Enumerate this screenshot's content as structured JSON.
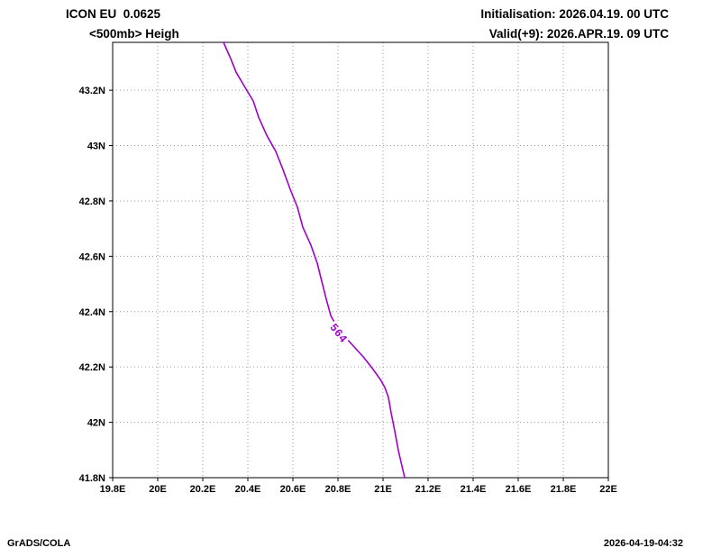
{
  "header": {
    "model_line": "ICON EU  0.0625",
    "field_line": "<500mb> Heigh",
    "init_line": "Initialisation: 2026.04.19. 00 UTC",
    "valid_line": "Valid(+9): 2026.APR.19. 09 UTC"
  },
  "footer": {
    "left": "GrADS/COLA",
    "right": "2026-04-19-04:32"
  },
  "chart_data": {
    "type": "line",
    "title": "ICON EU 0.0625 <500mb> Heigh",
    "grid": "dotted",
    "grid_color": "#9a9a9a",
    "frame_color": "#000000",
    "xlim": [
      19.8,
      22.0
    ],
    "ylim": [
      41.8,
      43.373
    ],
    "x_values": [
      19.8,
      20.0,
      20.2,
      20.4,
      20.6,
      20.8,
      21.0,
      21.2,
      21.4,
      21.6,
      21.8,
      22.0
    ],
    "x_ticks": [
      "19.8E",
      "20E",
      "20.2E",
      "20.4E",
      "20.6E",
      "20.8E",
      "21E",
      "21.2E",
      "21.4E",
      "21.6E",
      "21.8E",
      "22E"
    ],
    "y_values": [
      41.8,
      42.0,
      42.2,
      42.4,
      42.6,
      42.8,
      43.0,
      43.2
    ],
    "y_ticks": [
      "41.8N",
      "42N",
      "42.2N",
      "42.4N",
      "42.6N",
      "42.8N",
      "43N",
      "43.2N"
    ],
    "series": [
      {
        "name": "height-contour",
        "label": "564",
        "color": "#a000c8",
        "label_at": {
          "x": 20.804,
          "y": 42.322,
          "angle": 52
        },
        "points": [
          [
            20.292,
            43.373
          ],
          [
            20.324,
            43.314
          ],
          [
            20.348,
            43.265
          ],
          [
            20.388,
            43.21
          ],
          [
            20.424,
            43.161
          ],
          [
            20.448,
            43.102
          ],
          [
            20.484,
            43.037
          ],
          [
            20.524,
            42.979
          ],
          [
            20.556,
            42.913
          ],
          [
            20.588,
            42.842
          ],
          [
            20.62,
            42.777
          ],
          [
            20.644,
            42.705
          ],
          [
            20.68,
            42.64
          ],
          [
            20.708,
            42.575
          ],
          [
            20.728,
            42.51
          ],
          [
            20.748,
            42.445
          ],
          [
            20.768,
            42.386
          ],
          [
            20.796,
            42.344
          ],
          [
            20.832,
            42.308
          ],
          [
            20.876,
            42.269
          ],
          [
            20.916,
            42.233
          ],
          [
            20.956,
            42.191
          ],
          [
            20.988,
            42.155
          ],
          [
            21.008,
            42.126
          ],
          [
            21.024,
            42.09
          ],
          [
            21.036,
            42.034
          ],
          [
            21.052,
            41.969
          ],
          [
            21.068,
            41.898
          ],
          [
            21.084,
            41.842
          ],
          [
            21.096,
            41.8
          ]
        ]
      }
    ]
  }
}
